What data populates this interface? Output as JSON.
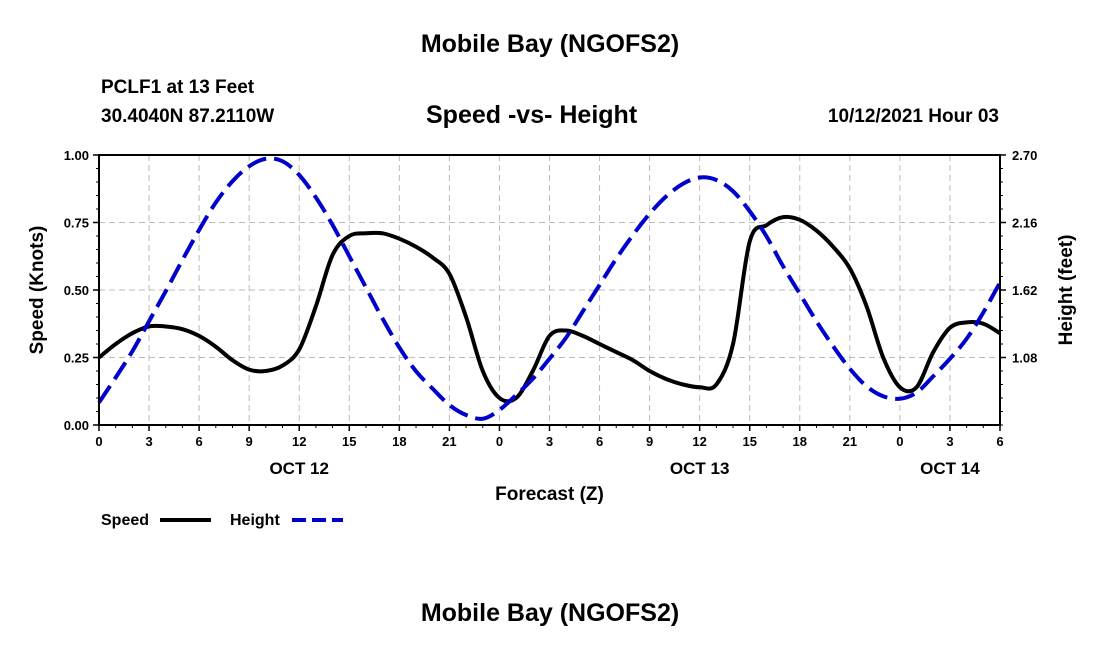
{
  "header": {
    "title": "Mobile Bay (NGOFS2)",
    "station": "PCLF1 at 13 Feet",
    "coords": "30.4040N  87.2110W",
    "subtitle": "Speed -vs- Height",
    "timestamp": "10/12/2021 Hour 03"
  },
  "footer": {
    "title": "Mobile Bay (NGOFS2)"
  },
  "colors": {
    "speed": "#000000",
    "height": "#0000cc",
    "grid": "#bbbbbb"
  },
  "chart_data": {
    "type": "line",
    "title": "Speed -vs- Height",
    "xlabel": "Forecast (Z)",
    "ylabel": "Speed (Knots)",
    "y2label": "Height (feet)",
    "x_unit": "hours from 0Z Oct 12",
    "xlim": [
      0,
      54
    ],
    "ylim": [
      0,
      1
    ],
    "y2lim": [
      0.54,
      2.7
    ],
    "grid": true,
    "x_ticks": [
      {
        "x": 0,
        "label": "0"
      },
      {
        "x": 3,
        "label": "3"
      },
      {
        "x": 6,
        "label": "6"
      },
      {
        "x": 9,
        "label": "9"
      },
      {
        "x": 12,
        "label": "12"
      },
      {
        "x": 15,
        "label": "15"
      },
      {
        "x": 18,
        "label": "18"
      },
      {
        "x": 21,
        "label": "21"
      },
      {
        "x": 24,
        "label": "0"
      },
      {
        "x": 27,
        "label": "3"
      },
      {
        "x": 30,
        "label": "6"
      },
      {
        "x": 33,
        "label": "9"
      },
      {
        "x": 36,
        "label": "12"
      },
      {
        "x": 39,
        "label": "15"
      },
      {
        "x": 42,
        "label": "18"
      },
      {
        "x": 45,
        "label": "21"
      },
      {
        "x": 48,
        "label": "0"
      },
      {
        "x": 51,
        "label": "3"
      },
      {
        "x": 54,
        "label": "6"
      }
    ],
    "day_labels": [
      {
        "x": 12,
        "label": "OCT 12"
      },
      {
        "x": 36,
        "label": "OCT 13"
      },
      {
        "x": 51,
        "label": "OCT 14"
      }
    ],
    "y_ticks": [
      {
        "v": 0.0,
        "label": "0.00"
      },
      {
        "v": 0.25,
        "label": "0.25"
      },
      {
        "v": 0.5,
        "label": "0.50"
      },
      {
        "v": 0.75,
        "label": "0.75"
      },
      {
        "v": 1.0,
        "label": "1.00"
      }
    ],
    "y2_ticks": [
      {
        "v": 1.08,
        "label": "1.08"
      },
      {
        "v": 1.62,
        "label": "1.62"
      },
      {
        "v": 2.16,
        "label": "2.16"
      },
      {
        "v": 2.7,
        "label": "2.70"
      }
    ],
    "legend": {
      "placement": "bottom-left",
      "speed_label": "Speed",
      "height_label": "Height"
    },
    "series": [
      {
        "name": "Speed",
        "axis": "left",
        "style": "solid",
        "x": [
          0,
          1,
          2,
          3,
          4,
          5,
          6,
          7,
          8,
          9,
          10,
          11,
          12,
          13,
          14,
          15,
          16,
          17,
          18,
          19,
          20,
          21,
          22,
          23,
          24,
          25,
          26,
          27,
          28,
          29,
          30,
          31,
          32,
          33,
          34,
          35,
          36,
          37,
          38,
          39,
          40,
          41,
          42,
          43,
          44,
          45,
          46,
          47,
          48,
          49,
          50,
          51,
          52,
          53,
          54
        ],
        "values": [
          0.25,
          0.3,
          0.34,
          0.365,
          0.365,
          0.355,
          0.33,
          0.29,
          0.24,
          0.205,
          0.2,
          0.22,
          0.28,
          0.44,
          0.63,
          0.7,
          0.71,
          0.71,
          0.69,
          0.66,
          0.62,
          0.56,
          0.4,
          0.2,
          0.1,
          0.1,
          0.2,
          0.33,
          0.35,
          0.33,
          0.3,
          0.27,
          0.24,
          0.2,
          0.17,
          0.15,
          0.14,
          0.15,
          0.3,
          0.68,
          0.74,
          0.77,
          0.76,
          0.72,
          0.66,
          0.58,
          0.44,
          0.25,
          0.14,
          0.14,
          0.27,
          0.36,
          0.38,
          0.375,
          0.34
        ]
      },
      {
        "name": "Height",
        "axis": "right",
        "style": "dashed",
        "x": [
          0,
          1,
          2,
          3,
          4,
          5,
          6,
          7,
          8,
          9,
          10,
          11,
          12,
          13,
          14,
          15,
          16,
          17,
          18,
          19,
          20,
          21,
          22,
          23,
          24,
          25,
          26,
          27,
          28,
          29,
          30,
          31,
          32,
          33,
          34,
          35,
          36,
          37,
          38,
          39,
          40,
          41,
          42,
          43,
          44,
          45,
          46,
          47,
          48,
          49,
          50,
          51,
          52,
          53,
          54
        ],
        "values": [
          0.72,
          0.92,
          1.13,
          1.37,
          1.61,
          1.86,
          2.1,
          2.32,
          2.49,
          2.61,
          2.67,
          2.65,
          2.54,
          2.36,
          2.14,
          1.89,
          1.64,
          1.39,
          1.16,
          0.97,
          0.83,
          0.7,
          0.62,
          0.59,
          0.66,
          0.78,
          0.91,
          1.07,
          1.24,
          1.45,
          1.66,
          1.87,
          2.06,
          2.23,
          2.37,
          2.47,
          2.52,
          2.5,
          2.41,
          2.25,
          2.05,
          1.81,
          1.59,
          1.37,
          1.17,
          0.99,
          0.85,
          0.77,
          0.75,
          0.8,
          0.93,
          1.07,
          1.23,
          1.44,
          1.68
        ]
      }
    ]
  }
}
